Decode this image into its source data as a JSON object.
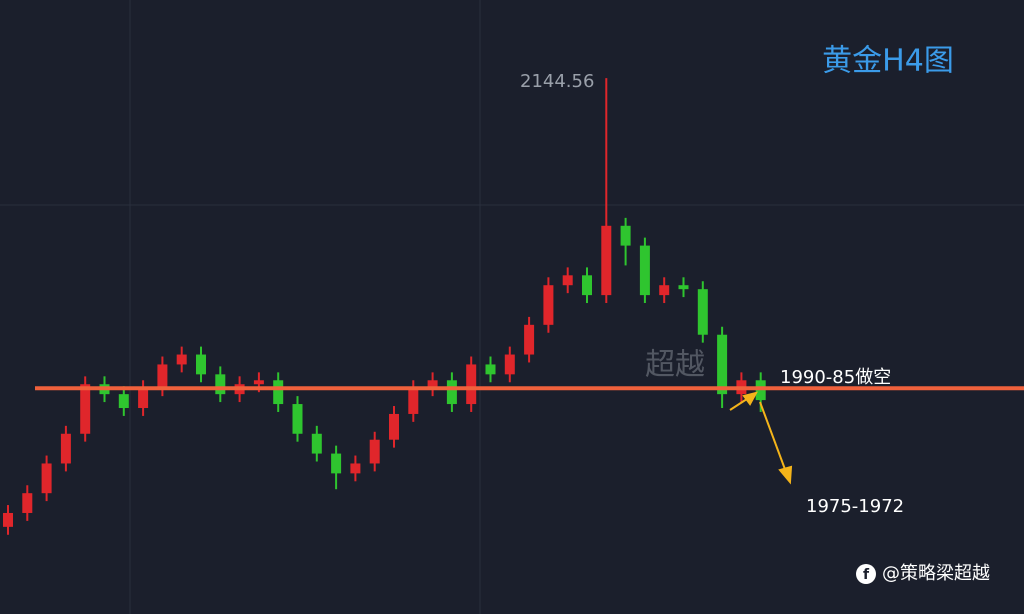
{
  "chart_data": {
    "type": "candlestick",
    "title": "黄金H4图",
    "high_label": "2144.56",
    "watermark": "超越",
    "annotations": [
      "1990-85做空",
      "1975-1972"
    ],
    "footer": "@策略梁超越",
    "ylim": [
      1874,
      2184
    ],
    "level": 1988,
    "up_color": "#e0262b",
    "down_color": "#2fc52f",
    "level_color": "#f0613c",
    "open": [
      1918,
      1925,
      1935,
      1950,
      1965,
      1990,
      1985,
      1978,
      1988,
      2000,
      2005,
      1995,
      1985,
      1990,
      1992,
      1980,
      1965,
      1955,
      1945,
      1950,
      1962,
      1975,
      1988,
      1992,
      1980,
      2000,
      1995,
      2005,
      2020,
      2040,
      2045,
      2035,
      2070,
      2060,
      2035,
      2040,
      2038,
      2015,
      1985,
      1992
    ],
    "high": [
      1929,
      1939,
      1954,
      1969,
      1994,
      1994,
      1989,
      1992,
      2004,
      2009,
      2009,
      1999,
      1994,
      1996,
      1996,
      1984,
      1969,
      1959,
      1954,
      1966,
      1979,
      1992,
      1996,
      1996,
      2004,
      2004,
      2009,
      2024,
      2044,
      2049,
      2049,
      2144.56,
      2074,
      2064,
      2044,
      2044,
      2042,
      2019,
      1996,
      1996
    ],
    "low": [
      1914,
      1921,
      1931,
      1946,
      1961,
      1981,
      1974,
      1974,
      1984,
      1996,
      1991,
      1981,
      1981,
      1986,
      1976,
      1961,
      1951,
      1937,
      1941,
      1946,
      1958,
      1971,
      1984,
      1976,
      1976,
      1991,
      1991,
      2001,
      2016,
      2036,
      2031,
      2031,
      2050,
      2031,
      2031,
      2034,
      2011,
      1978,
      1981,
      1976
    ],
    "close": [
      1925,
      1935,
      1950,
      1965,
      1990,
      1985,
      1978,
      1988,
      2000,
      2005,
      1995,
      1985,
      1990,
      1992,
      1980,
      1965,
      1955,
      1945,
      1950,
      1962,
      1975,
      1988,
      1992,
      1980,
      2000,
      1995,
      2005,
      2020,
      2040,
      2045,
      2035,
      2070,
      2060,
      2035,
      2040,
      2038,
      2015,
      1985,
      1992,
      1982
    ]
  }
}
